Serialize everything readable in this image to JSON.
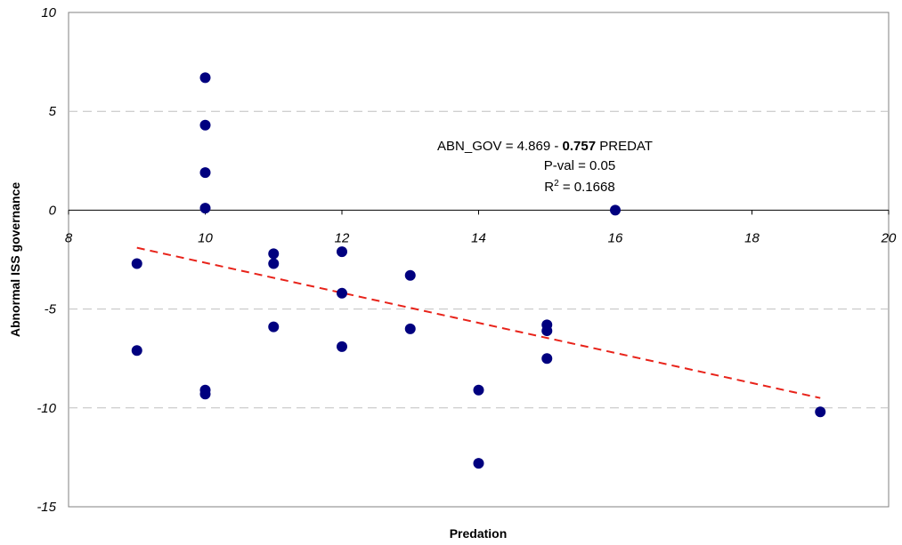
{
  "chart_data": {
    "type": "scatter",
    "xlabel": "Predation",
    "ylabel": "Abnormal ISS governance",
    "xlim": [
      8,
      20
    ],
    "ylim": [
      -15,
      10
    ],
    "x_ticks": [
      8,
      10,
      12,
      14,
      16,
      18,
      20
    ],
    "y_ticks": [
      10,
      5,
      0,
      -5,
      -10,
      -15
    ],
    "grid": "horizontal dashed",
    "points": [
      {
        "x": 9,
        "y": -2.7
      },
      {
        "x": 9,
        "y": -7.1
      },
      {
        "x": 10,
        "y": 6.7
      },
      {
        "x": 10,
        "y": 4.3
      },
      {
        "x": 10,
        "y": 1.9
      },
      {
        "x": 10,
        "y": 0.1
      },
      {
        "x": 10,
        "y": -9.1
      },
      {
        "x": 10,
        "y": -9.3
      },
      {
        "x": 11,
        "y": -2.2
      },
      {
        "x": 11,
        "y": -2.7
      },
      {
        "x": 11,
        "y": -5.9
      },
      {
        "x": 12,
        "y": -2.1
      },
      {
        "x": 12,
        "y": -4.2
      },
      {
        "x": 12,
        "y": -6.9
      },
      {
        "x": 13,
        "y": -3.3
      },
      {
        "x": 13,
        "y": -6.0
      },
      {
        "x": 14,
        "y": -9.1
      },
      {
        "x": 14,
        "y": -12.8
      },
      {
        "x": 15,
        "y": -5.8
      },
      {
        "x": 15,
        "y": -6.1
      },
      {
        "x": 15,
        "y": -7.5
      },
      {
        "x": 16,
        "y": 0.0
      },
      {
        "x": 19,
        "y": -10.2
      }
    ],
    "trendline": {
      "x": [
        9,
        19
      ],
      "y": [
        -1.9,
        -9.5
      ],
      "color": "#e8231a",
      "style": "dashed"
    },
    "annotation": {
      "eq_prefix": "ABN_GOV = 4.869 - ",
      "eq_coef": "0.757",
      "eq_suffix": " PREDAT",
      "pval": "P-val = 0.05",
      "r2_base": "R",
      "r2_sup": "2",
      "r2_value": " = 0.1668"
    },
    "colors": {
      "points": "#00007f",
      "trendline": "#e8231a",
      "grid": "#c0c0c0",
      "frame": "#808080"
    }
  }
}
